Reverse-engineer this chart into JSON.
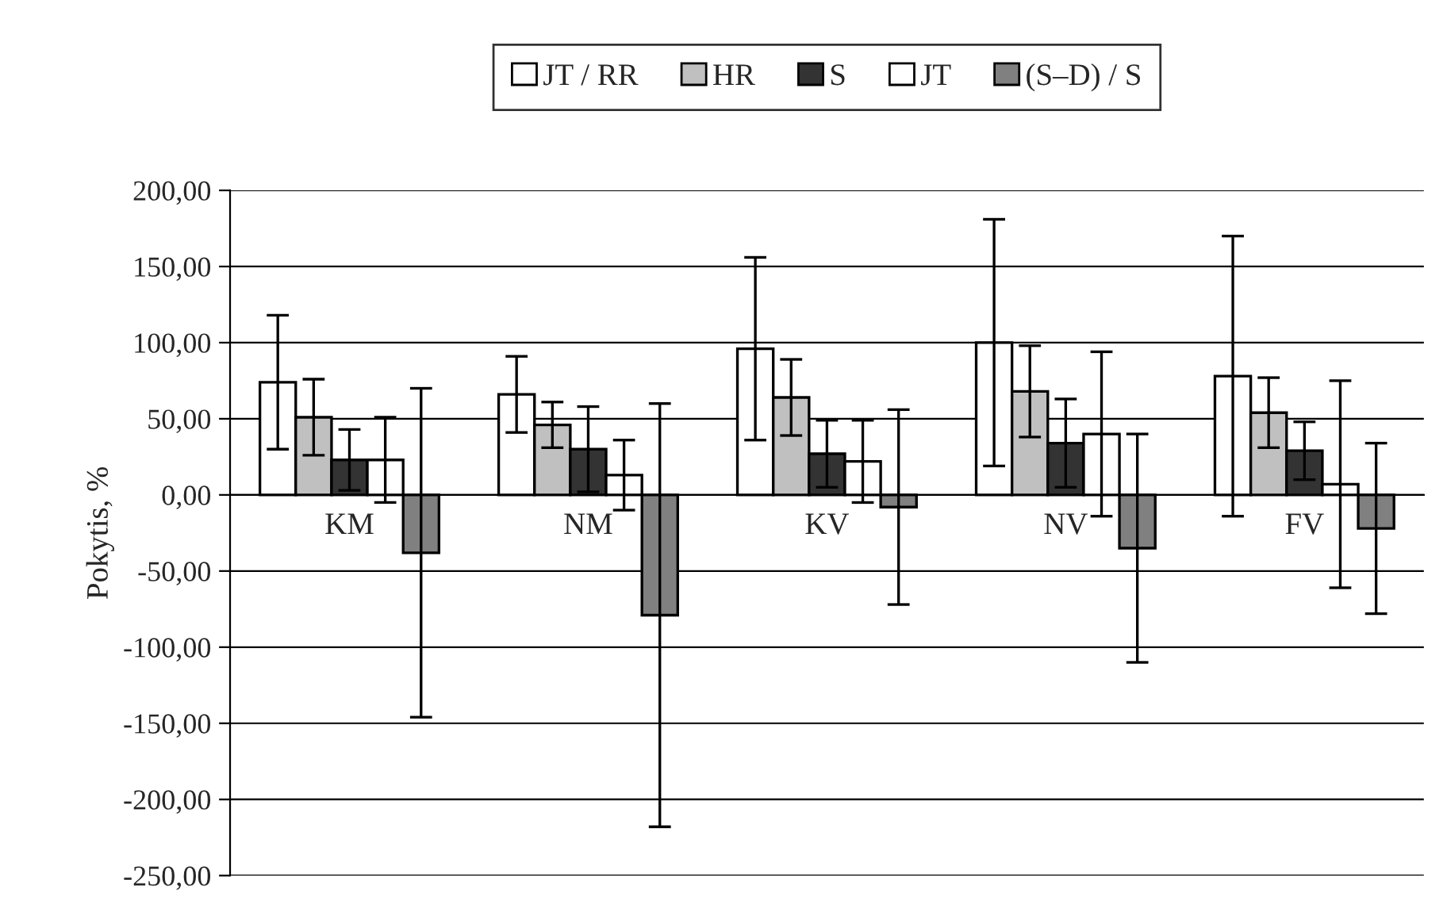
{
  "chart_data": {
    "type": "bar",
    "ylabel": "Pokytis, %",
    "categories": [
      "KM",
      "NM",
      "KV",
      "NV",
      "FV"
    ],
    "series": [
      {
        "name": "JT / RR",
        "color": "#ffffff",
        "values": [
          74,
          66,
          96,
          100,
          78
        ],
        "errors": [
          44,
          25,
          60,
          81,
          92
        ]
      },
      {
        "name": "HR",
        "color": "#c0c0c0",
        "values": [
          51,
          46,
          64,
          68,
          54
        ],
        "errors": [
          25,
          15,
          25,
          30,
          23
        ]
      },
      {
        "name": "S",
        "color": "#333333",
        "values": [
          23,
          30,
          27,
          34,
          29
        ],
        "errors": [
          20,
          28,
          22,
          29,
          19
        ]
      },
      {
        "name": "JT",
        "color": "#ffffff",
        "values": [
          23,
          13,
          22,
          40,
          7
        ],
        "errors": [
          28,
          23,
          27,
          54,
          68
        ]
      },
      {
        "name": "(S–D) / S",
        "color": "#808080",
        "values": [
          -38,
          -79,
          -8,
          -35,
          -22
        ],
        "errors": [
          108,
          139,
          64,
          75,
          56
        ]
      }
    ],
    "ylim": [
      -250,
      200
    ],
    "yticks": [
      {
        "value": -250,
        "label": "-250,00"
      },
      {
        "value": -200,
        "label": "-200,00"
      },
      {
        "value": -150,
        "label": "-150,00"
      },
      {
        "value": -100,
        "label": "-100,00"
      },
      {
        "value": -50,
        "label": "-50,00"
      },
      {
        "value": 0,
        "label": "0,00"
      },
      {
        "value": 50,
        "label": "50,00"
      },
      {
        "value": 100,
        "label": "100,00"
      },
      {
        "value": 150,
        "label": "150,00"
      },
      {
        "value": 200,
        "label": "200,00"
      }
    ],
    "grid": "y",
    "legend": "top"
  }
}
